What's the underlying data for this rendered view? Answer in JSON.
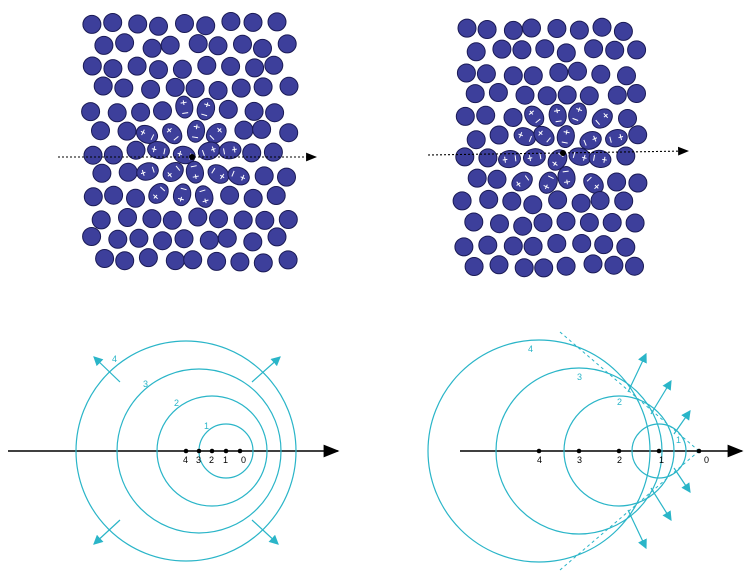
{
  "colors": {
    "atom_fill": "#3d3f9b",
    "atom_stroke": "#1a1a55",
    "polar_mark": "#ffffff",
    "wave": "#2ab5c8",
    "axis": "#000000",
    "arrow_head": "#000000"
  },
  "panels": {
    "top_left": {
      "kind": "atom-lattice-slow-charge"
    },
    "top_right": {
      "kind": "atom-lattice-fast-charge"
    },
    "bottom_left": {
      "kind": "wavefronts-slow",
      "point_labels": [
        "4",
        "3",
        "2",
        "1",
        "0"
      ],
      "circle_labels": [
        "1",
        "2",
        "3",
        "4"
      ]
    },
    "bottom_right": {
      "kind": "wavefronts-cherenkov",
      "point_labels": [
        "4",
        "3",
        "2",
        "1",
        "0"
      ],
      "circle_labels": [
        "1",
        "2",
        "3",
        "4"
      ]
    }
  }
}
